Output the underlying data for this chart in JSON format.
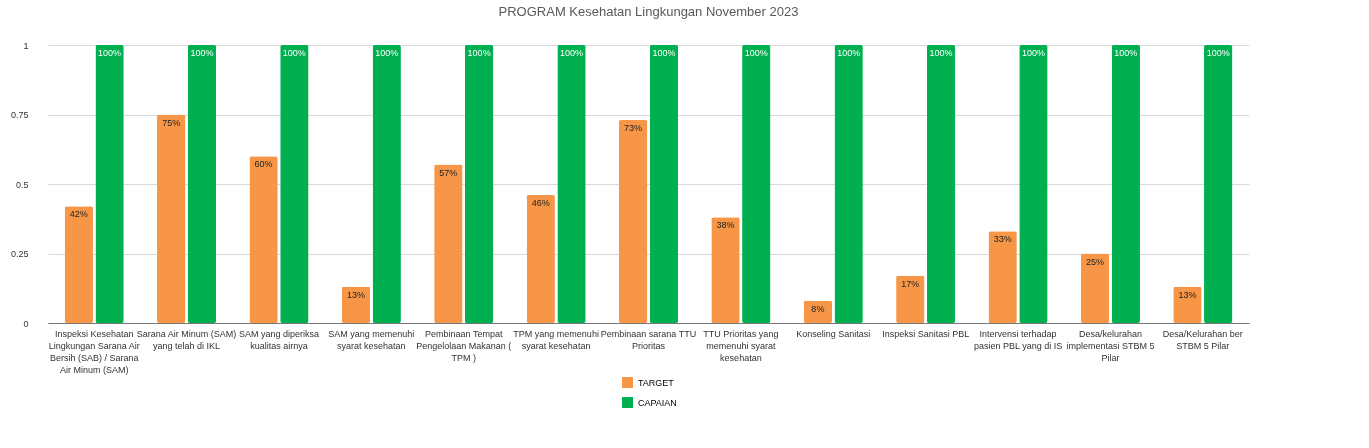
{
  "chart_data": {
    "type": "bar",
    "title": "PROGRAM Kesehatan Lingkungan November 2023",
    "categories": [
      "Inspeksi Kesehatan Lingkungan Sarana Air Bersih (SAB) / Sarana Air Minum (SAM)",
      "Sarana Air Minum (SAM) yang telah di IKL",
      "SAM yang diperiksa kualitas airnya",
      "SAM yang memenuhi syarat kesehatan",
      "Pembinaan Tempat Pengelolaan Makanan ( TPM )",
      "TPM yang memenuhi syarat kesehatan",
      "Pembinaan sarana TTU Prioritas",
      "TTU Prioritas yang memenuhi syarat kesehatan",
      "Konseling Sanitasi",
      "Inspeksi Sanitasi PBL",
      "Intervensi terhadap pasien PBL yang di IS",
      "Desa/kelurahan implementasi STBM 5 Pilar",
      "Desa/Kelurahan ber STBM 5 Pilar"
    ],
    "series": [
      {
        "name": "TARGET",
        "color": "#f79646",
        "values": [
          0.42,
          0.75,
          0.6,
          0.13,
          0.57,
          0.46,
          0.73,
          0.38,
          0.08,
          0.17,
          0.33,
          0.25,
          0.13
        ],
        "value_labels": [
          "42%",
          "75%",
          "60%",
          "13%",
          "57%",
          "46%",
          "73%",
          "38%",
          "8%",
          "17%",
          "33%",
          "25%",
          "13%"
        ]
      },
      {
        "name": "CAPAIAN",
        "color": "#00b050",
        "values": [
          1,
          1,
          1,
          1,
          1,
          1,
          1,
          1,
          1,
          1,
          1,
          1,
          1
        ],
        "value_labels": [
          "100%",
          "100%",
          "100%",
          "100%",
          "100%",
          "100%",
          "100%",
          "100%",
          "100%",
          "100%",
          "100%",
          "100%",
          "100%"
        ]
      }
    ],
    "ylim": [
      0,
      1
    ],
    "yticks": [
      0,
      0.25,
      0.5,
      0.75,
      1
    ],
    "grid": "y",
    "legend": "bottom"
  }
}
